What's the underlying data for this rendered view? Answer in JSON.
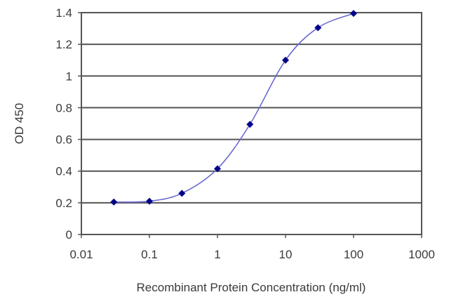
{
  "chart_data": {
    "type": "line",
    "title": "",
    "xlabel": "Recombinant Protein Concentration (ng/ml)",
    "ylabel": "OD 450",
    "xscale": "log",
    "xlim": [
      0.01,
      1000
    ],
    "ylim": [
      0,
      1.4
    ],
    "grid": true,
    "legend": null,
    "x_ticks": [
      "0.01",
      "0.1",
      "1",
      "10",
      "100",
      "1000"
    ],
    "y_ticks": [
      "0",
      "0.2",
      "0.4",
      "0.6",
      "0.8",
      "1",
      "1.2",
      "1.4"
    ],
    "series": [
      {
        "name": "OD 450",
        "color": "#00008b",
        "line_color": "#6a6ad0",
        "marker": "diamond",
        "x": [
          0.03,
          0.1,
          0.3,
          1,
          3,
          10,
          30,
          100
        ],
        "values": [
          0.205,
          0.21,
          0.26,
          0.415,
          0.695,
          1.1,
          1.305,
          1.395
        ]
      }
    ]
  }
}
